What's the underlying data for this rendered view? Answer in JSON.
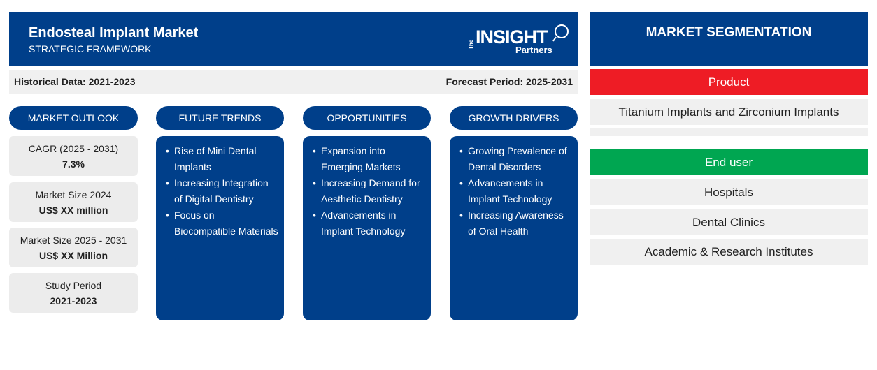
{
  "header": {
    "title": "Endosteal Implant Market",
    "subtitle": "STRATEGIC FRAMEWORK",
    "logo": {
      "the": "The",
      "insight": "INSIGHT",
      "partners": "Partners"
    }
  },
  "periods": {
    "historical": "Historical Data: 2021-2023",
    "forecast": "Forecast Period: 2025-2031"
  },
  "columns": {
    "outlook": "MARKET OUTLOOK",
    "trends": "FUTURE TRENDS",
    "opportunities": "OPPORTUNITIES",
    "drivers": "GROWTH DRIVERS"
  },
  "outlook": [
    {
      "label": "CAGR (2025 - 2031)",
      "value": "7.3%"
    },
    {
      "label": "Market Size 2024",
      "value": "US$ XX million"
    },
    {
      "label": "Market Size 2025 - 2031",
      "value": "US$ XX Million"
    },
    {
      "label": "Study Period",
      "value": "2021-2023"
    }
  ],
  "trends": [
    "Rise of Mini Dental Implants",
    "Increasing Integration of Digital Dentistry",
    "Focus on Biocompatible Materials"
  ],
  "opportunities": [
    "Expansion into Emerging Markets",
    "Increasing Demand for Aesthetic Dentistry",
    "Advancements in Implant Technology"
  ],
  "drivers": [
    "Growing Prevalence of Dental Disorders",
    "Advancements in Implant Technology",
    "Increasing Awareness of Oral Health"
  ],
  "segmentation": {
    "title": "MARKET SEGMENTATION",
    "product": {
      "label": "Product",
      "color": "#ee1c25",
      "items": [
        "Titanium Implants and Zirconium Implants"
      ]
    },
    "end_user": {
      "label": "End user",
      "color": "#00a651",
      "items": [
        "Hospitals",
        "Dental Clinics",
        "Academic & Research Institutes"
      ]
    }
  },
  "colors": {
    "primary": "#003f8a",
    "panel_bg": "#f0f0f0"
  }
}
